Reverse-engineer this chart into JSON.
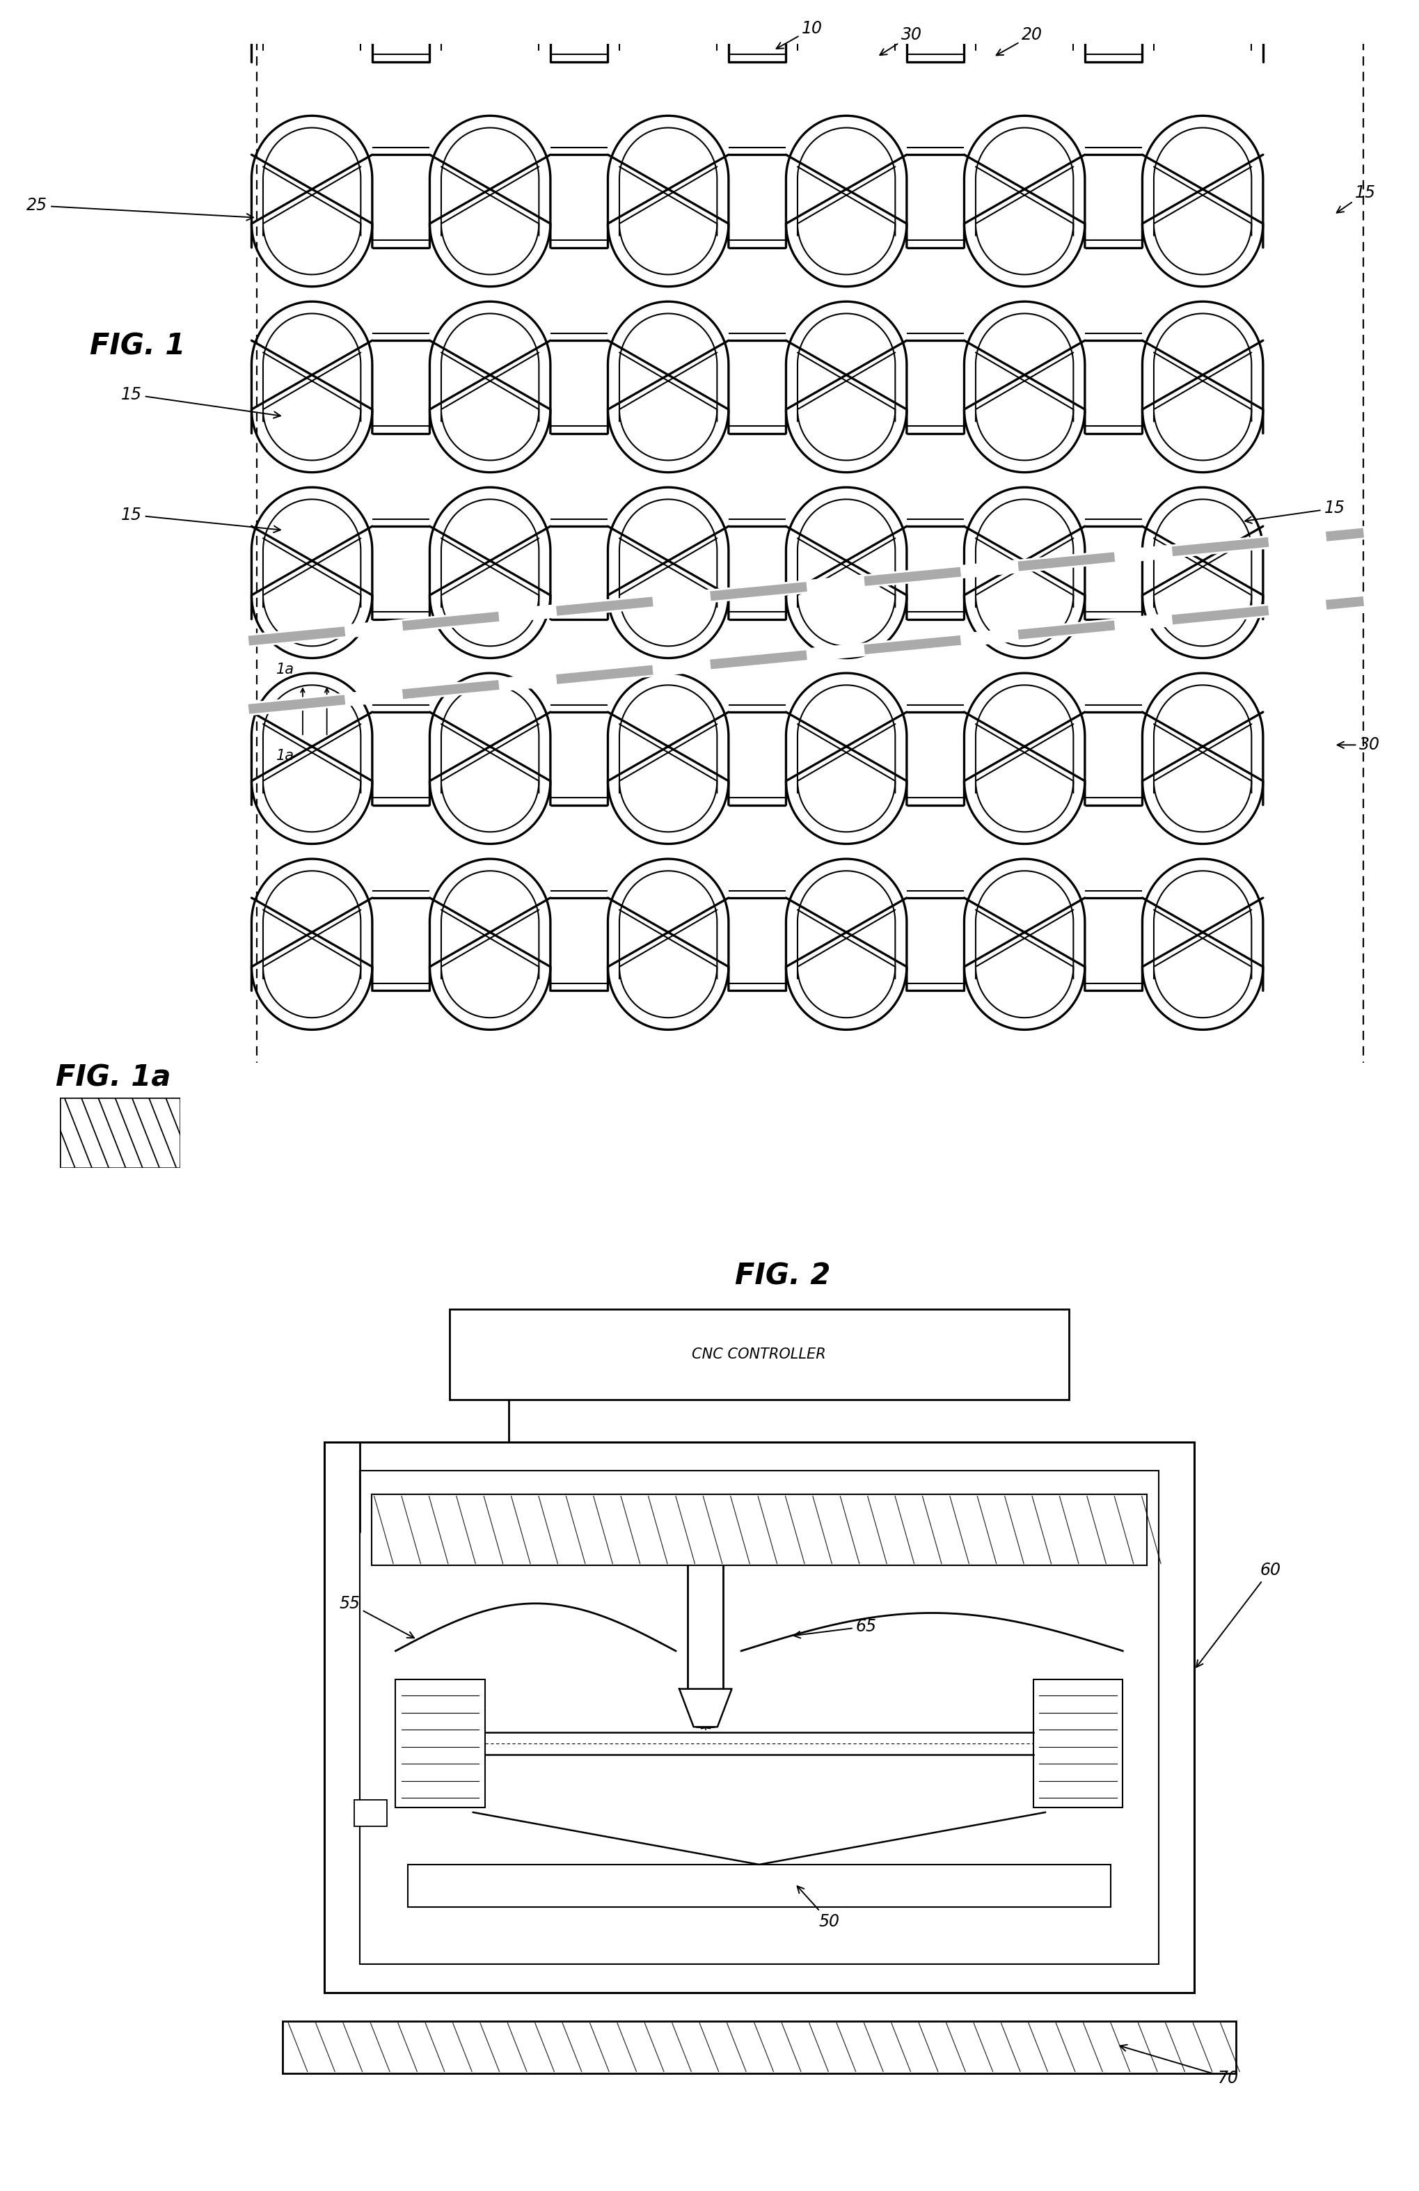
{
  "fig_width": 20.39,
  "fig_height": 31.48,
  "bg_color": "#ffffff",
  "line_color": "#000000",
  "label_fontsize": 17,
  "fig_label_fontsize": 30,
  "small_label_fontsize": 15,
  "labels": {
    "fig1": "FIG. 1",
    "fig1a": "FIG. 1a",
    "fig2": "FIG. 2",
    "10": "10",
    "20": "20",
    "25": "25",
    "30a": "30",
    "30b": "30",
    "15a": "15",
    "15b": "15",
    "15c": "15",
    "15d": "15",
    "1a_top": "1a",
    "1a_bot": "1a",
    "50": "50",
    "55": "55",
    "60": "60",
    "65": "65",
    "70": "70",
    "cnc": "CNC CONTROLLER"
  }
}
